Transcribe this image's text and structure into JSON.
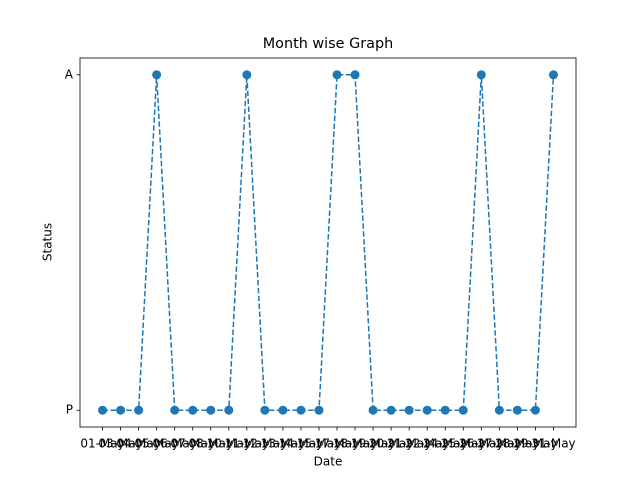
{
  "chart_data": {
    "type": "line",
    "title": "Month wise Graph",
    "x_label": "Date",
    "y_label": "Status",
    "categories": [
      "01-May",
      "03-May",
      "04-May",
      "05-May",
      "06-May",
      "07-May",
      "08-May",
      "10-May",
      "11-May",
      "12-May",
      "13-May",
      "14-May",
      "15-May",
      "17-May",
      "18-May",
      "19-May",
      "20-May",
      "21-May",
      "22-May",
      "24-May",
      "25-May",
      "26-May",
      "27-May",
      "28-May",
      "29-May",
      "31-May"
    ],
    "y_categories": [
      "P",
      "A"
    ],
    "series": [
      {
        "name": "Status",
        "color": "#1f77b4",
        "values": [
          "P",
          "P",
          "P",
          "A",
          "P",
          "P",
          "P",
          "P",
          "A",
          "P",
          "P",
          "P",
          "P",
          "A",
          "A",
          "P",
          "P",
          "P",
          "P",
          "P",
          "P",
          "A",
          "P",
          "P",
          "P",
          "A"
        ]
      }
    ]
  }
}
